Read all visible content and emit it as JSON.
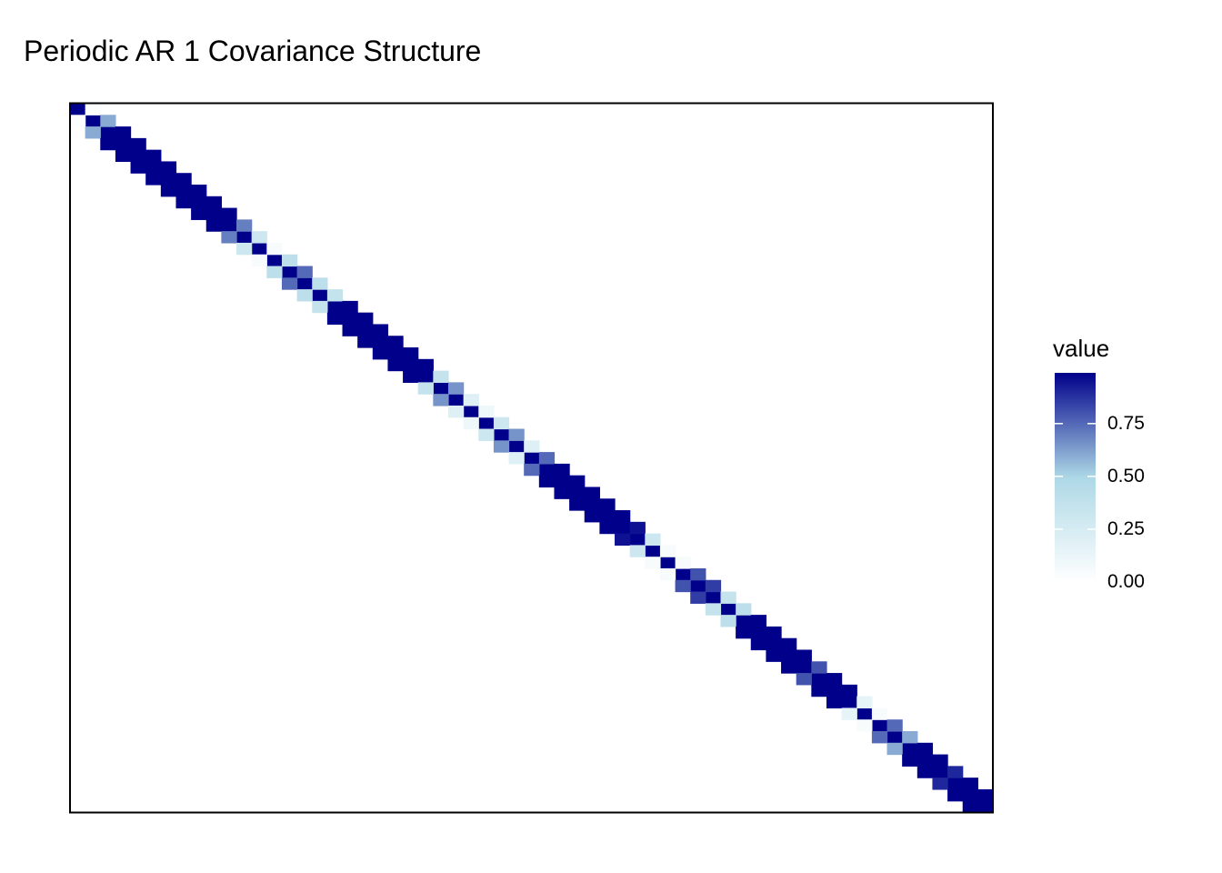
{
  "chart_data": {
    "type": "heatmap",
    "title": "Periodic AR 1 Covariance Structure",
    "xlabel": "",
    "ylabel": "",
    "grid": false,
    "n": 61,
    "diagonal": [
      0.99,
      0.99,
      0.99,
      0.99,
      0.99,
      0.99,
      0.99,
      0.99,
      0.99,
      0.99,
      0.99,
      0.99,
      0.99,
      0.99,
      0.99,
      0.99,
      0.99,
      0.99,
      0.99,
      0.99,
      0.99,
      0.99,
      0.99,
      0.99,
      0.99,
      0.99,
      0.99,
      0.99,
      0.99,
      0.99,
      0.99,
      0.99,
      0.99,
      0.99,
      0.99,
      0.99,
      0.99,
      0.99,
      0.99,
      0.99,
      0.99,
      0.99,
      0.99,
      0.99,
      0.99,
      0.99,
      0.99,
      0.99,
      0.99,
      0.99,
      0.99,
      0.99,
      0.99,
      0.99,
      0.99,
      0.99,
      0.99,
      0.99,
      0.99,
      0.99,
      0.99
    ],
    "off_diagonal": [
      0.02,
      0.6,
      0.99,
      0.99,
      0.99,
      0.99,
      0.99,
      0.99,
      0.99,
      0.99,
      0.7,
      0.3,
      0.05,
      0.4,
      0.75,
      0.4,
      0.35,
      0.99,
      0.99,
      0.99,
      0.99,
      0.99,
      0.99,
      0.35,
      0.65,
      0.2,
      0.1,
      0.3,
      0.65,
      0.2,
      0.75,
      0.99,
      0.99,
      0.99,
      0.99,
      0.99,
      0.95,
      0.3,
      0.05,
      0.05,
      0.8,
      0.85,
      0.35,
      0.4,
      0.99,
      0.99,
      0.99,
      0.99,
      0.8,
      0.99,
      0.99,
      0.15,
      0.05,
      0.75,
      0.6,
      0.99,
      0.99,
      0.9,
      0.99,
      0.99,
      0.99,
      0.99,
      0.99,
      0.35,
      0.05
    ],
    "off_diagonal_note_removed": true,
    "value_range": [
      0,
      0.99
    ],
    "colorscale": {
      "name": "value",
      "stops": [
        {
          "value": 0.0,
          "color": "#ffffff"
        },
        {
          "value": 0.5,
          "color": "#add8e6"
        },
        {
          "value": 1.0,
          "color": "#00008b"
        }
      ],
      "ticks": [
        "0.00",
        "0.25",
        "0.50",
        "0.75"
      ],
      "tick_values": [
        0,
        0.25,
        0.5,
        0.75
      ]
    },
    "legend_placement": "right"
  }
}
